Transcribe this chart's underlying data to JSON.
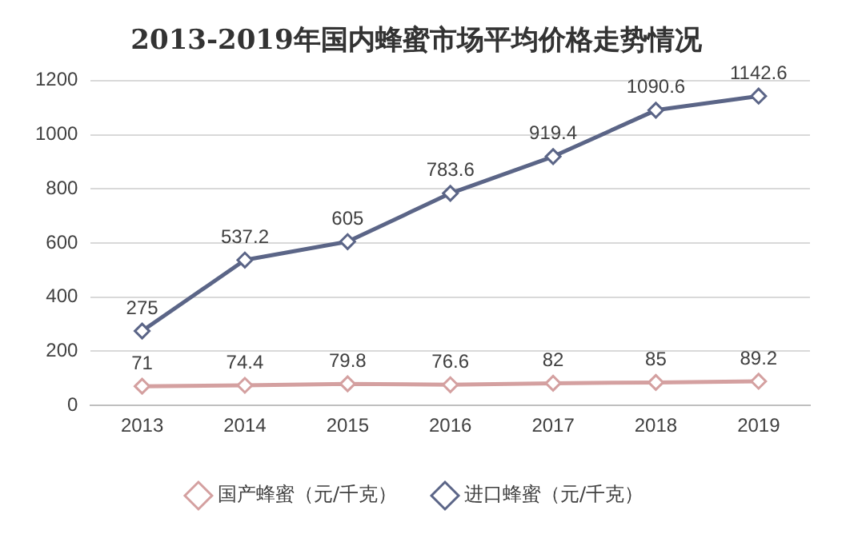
{
  "chart_data": {
    "type": "line",
    "title": "2013-2019年国内蜂蜜市场平均价格走势情况",
    "categories": [
      "2013",
      "2014",
      "2015",
      "2016",
      "2017",
      "2018",
      "2019"
    ],
    "series": [
      {
        "name": "国产蜂蜜（元/千克）",
        "color": "#d4a0a0",
        "values": [
          71,
          74.4,
          79.8,
          76.6,
          82,
          85,
          89.2
        ]
      },
      {
        "name": "进口蜂蜜（元/千克）",
        "color": "#5b6587",
        "values": [
          275,
          537.2,
          605,
          783.6,
          919.4,
          1090.6,
          1142.6
        ]
      }
    ],
    "ylim": [
      0,
      1200
    ],
    "yticks": [
      0,
      200,
      400,
      600,
      800,
      1000,
      1200
    ],
    "grid": "y",
    "legend": "bottom",
    "marker": "diamond",
    "data_labels": true
  }
}
